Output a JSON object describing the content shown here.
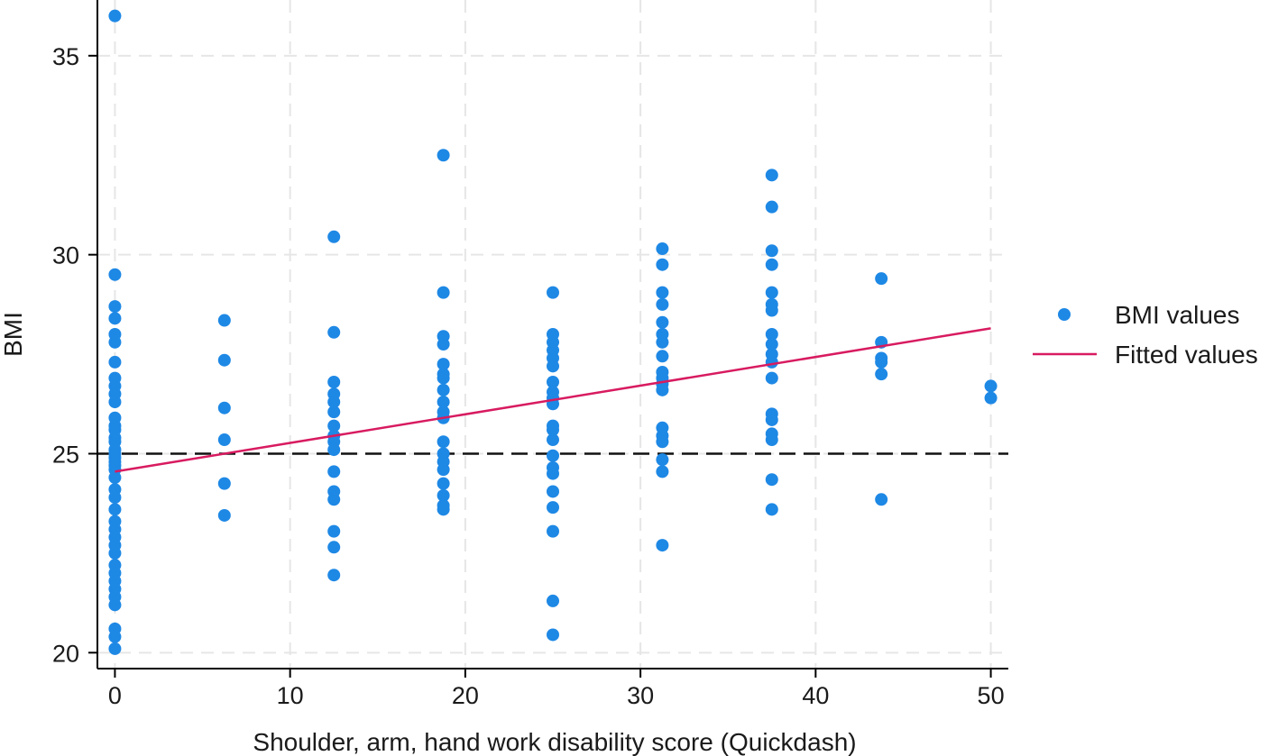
{
  "chart_data": {
    "type": "scatter",
    "title": "",
    "xlabel": "Shoulder, arm, hand work disability score (Quickdash)",
    "ylabel": "BMI",
    "xlim": [
      -1,
      51
    ],
    "ylim": [
      19.6,
      36.4
    ],
    "xticks": [
      0,
      10,
      20,
      30,
      40,
      50
    ],
    "yticks": [
      20,
      25,
      30,
      35
    ],
    "grid": true,
    "legend": "right",
    "colors": {
      "points": "#1e88e5",
      "fit": "#d81b60",
      "reference": "#111111",
      "grid": "#e6e6e6"
    },
    "reference_line": {
      "y": 25,
      "style": "dashed"
    },
    "series": [
      {
        "name": "BMI values",
        "kind": "scatter",
        "points": [
          [
            0,
            36.0
          ],
          [
            0,
            29.5
          ],
          [
            0,
            28.7
          ],
          [
            0,
            28.4
          ],
          [
            0,
            28.0
          ],
          [
            0,
            27.8
          ],
          [
            0,
            27.3
          ],
          [
            0,
            26.9
          ],
          [
            0,
            26.7
          ],
          [
            0,
            26.5
          ],
          [
            0,
            26.3
          ],
          [
            0,
            25.9
          ],
          [
            0,
            25.7
          ],
          [
            0,
            25.6
          ],
          [
            0,
            25.4
          ],
          [
            0,
            25.3
          ],
          [
            0,
            25.1
          ],
          [
            0,
            25.0
          ],
          [
            0,
            24.9
          ],
          [
            0,
            24.8
          ],
          [
            0,
            24.7
          ],
          [
            0,
            24.6
          ],
          [
            0,
            24.4
          ],
          [
            0,
            24.1
          ],
          [
            0,
            23.9
          ],
          [
            0,
            23.6
          ],
          [
            0,
            23.3
          ],
          [
            0,
            23.1
          ],
          [
            0,
            22.9
          ],
          [
            0,
            22.7
          ],
          [
            0,
            22.5
          ],
          [
            0,
            22.2
          ],
          [
            0,
            22.0
          ],
          [
            0,
            21.8
          ],
          [
            0,
            21.6
          ],
          [
            0,
            21.4
          ],
          [
            0,
            21.2
          ],
          [
            0,
            20.6
          ],
          [
            0,
            20.4
          ],
          [
            0,
            20.1
          ],
          [
            6.25,
            28.35
          ],
          [
            6.25,
            27.35
          ],
          [
            6.25,
            26.15
          ],
          [
            6.25,
            25.35
          ],
          [
            6.25,
            24.25
          ],
          [
            6.25,
            23.45
          ],
          [
            12.5,
            30.45
          ],
          [
            12.5,
            28.05
          ],
          [
            12.5,
            26.8
          ],
          [
            12.5,
            26.5
          ],
          [
            12.5,
            26.3
          ],
          [
            12.5,
            26.05
          ],
          [
            12.5,
            25.7
          ],
          [
            12.5,
            25.45
          ],
          [
            12.5,
            25.3
          ],
          [
            12.5,
            25.1
          ],
          [
            12.5,
            24.55
          ],
          [
            12.5,
            24.05
          ],
          [
            12.5,
            23.85
          ],
          [
            12.5,
            23.05
          ],
          [
            12.5,
            22.65
          ],
          [
            12.5,
            21.95
          ],
          [
            18.75,
            32.5
          ],
          [
            18.75,
            29.05
          ],
          [
            18.75,
            27.95
          ],
          [
            18.75,
            27.75
          ],
          [
            18.75,
            27.25
          ],
          [
            18.75,
            27.0
          ],
          [
            18.75,
            26.9
          ],
          [
            18.75,
            26.6
          ],
          [
            18.75,
            26.3
          ],
          [
            18.75,
            26.05
          ],
          [
            18.75,
            25.9
          ],
          [
            18.75,
            25.3
          ],
          [
            18.75,
            25.0
          ],
          [
            18.75,
            24.8
          ],
          [
            18.75,
            24.6
          ],
          [
            18.75,
            24.25
          ],
          [
            18.75,
            23.95
          ],
          [
            18.75,
            23.7
          ],
          [
            18.75,
            23.6
          ],
          [
            25,
            29.05
          ],
          [
            25,
            28.0
          ],
          [
            25,
            27.8
          ],
          [
            25,
            27.6
          ],
          [
            25,
            27.4
          ],
          [
            25,
            27.2
          ],
          [
            25,
            26.8
          ],
          [
            25,
            26.55
          ],
          [
            25,
            26.4
          ],
          [
            25,
            26.25
          ],
          [
            25,
            25.7
          ],
          [
            25,
            25.6
          ],
          [
            25,
            25.35
          ],
          [
            25,
            24.95
          ],
          [
            25,
            24.65
          ],
          [
            25,
            24.5
          ],
          [
            25,
            24.05
          ],
          [
            25,
            23.65
          ],
          [
            25,
            23.05
          ],
          [
            25,
            21.3
          ],
          [
            25,
            20.45
          ],
          [
            31.25,
            30.15
          ],
          [
            31.25,
            29.75
          ],
          [
            31.25,
            29.05
          ],
          [
            31.25,
            28.75
          ],
          [
            31.25,
            28.3
          ],
          [
            31.25,
            28.0
          ],
          [
            31.25,
            27.8
          ],
          [
            31.25,
            27.45
          ],
          [
            31.25,
            27.05
          ],
          [
            31.25,
            26.9
          ],
          [
            31.25,
            26.75
          ],
          [
            31.25,
            26.6
          ],
          [
            31.25,
            25.65
          ],
          [
            31.25,
            25.45
          ],
          [
            31.25,
            25.3
          ],
          [
            31.25,
            24.85
          ],
          [
            31.25,
            24.55
          ],
          [
            31.25,
            22.7
          ],
          [
            37.5,
            32.0
          ],
          [
            37.5,
            31.2
          ],
          [
            37.5,
            30.1
          ],
          [
            37.5,
            29.75
          ],
          [
            37.5,
            29.05
          ],
          [
            37.5,
            28.75
          ],
          [
            37.5,
            28.6
          ],
          [
            37.5,
            28.0
          ],
          [
            37.5,
            27.75
          ],
          [
            37.5,
            27.5
          ],
          [
            37.5,
            27.3
          ],
          [
            37.5,
            26.9
          ],
          [
            37.5,
            26.0
          ],
          [
            37.5,
            25.85
          ],
          [
            37.5,
            25.5
          ],
          [
            37.5,
            25.35
          ],
          [
            37.5,
            24.35
          ],
          [
            37.5,
            23.6
          ],
          [
            43.75,
            29.4
          ],
          [
            43.75,
            27.8
          ],
          [
            43.75,
            27.4
          ],
          [
            43.75,
            27.3
          ],
          [
            43.75,
            27.0
          ],
          [
            43.75,
            23.85
          ],
          [
            50,
            26.7
          ],
          [
            50,
            26.4
          ]
        ]
      },
      {
        "name": "Fitted values",
        "kind": "line",
        "points": [
          [
            0,
            24.55
          ],
          [
            50,
            28.15
          ]
        ]
      }
    ]
  }
}
